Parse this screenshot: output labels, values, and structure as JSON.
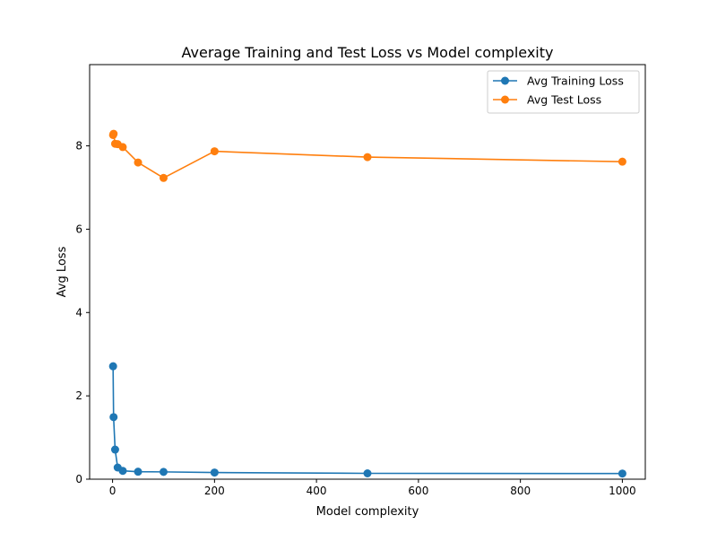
{
  "chart_data": {
    "type": "line",
    "title": "Average Training and Test Loss vs Model complexity",
    "xlabel": "Model complexity",
    "ylabel": "Avg Loss",
    "xlim": [
      -45,
      1045
    ],
    "ylim": [
      0,
      9.95
    ],
    "xticks": [
      0,
      200,
      400,
      600,
      800,
      1000
    ],
    "yticks": [
      0,
      2,
      4,
      6,
      8
    ],
    "grid": false,
    "legend_position": "top-right",
    "x": [
      1,
      2,
      5,
      10,
      20,
      50,
      100,
      200,
      500,
      1000
    ],
    "series": [
      {
        "name": "Avg Training Loss",
        "color": "#1f77b4",
        "marker": "circle",
        "values": [
          2.71,
          1.49,
          0.71,
          0.28,
          0.2,
          0.18,
          0.175,
          0.16,
          0.14,
          0.135
        ]
      },
      {
        "name": "Avg Test Loss",
        "color": "#ff7f0e",
        "marker": "circle",
        "values": [
          8.26,
          8.29,
          8.05,
          8.04,
          7.97,
          7.6,
          7.23,
          7.87,
          7.73,
          7.62
        ]
      }
    ]
  }
}
